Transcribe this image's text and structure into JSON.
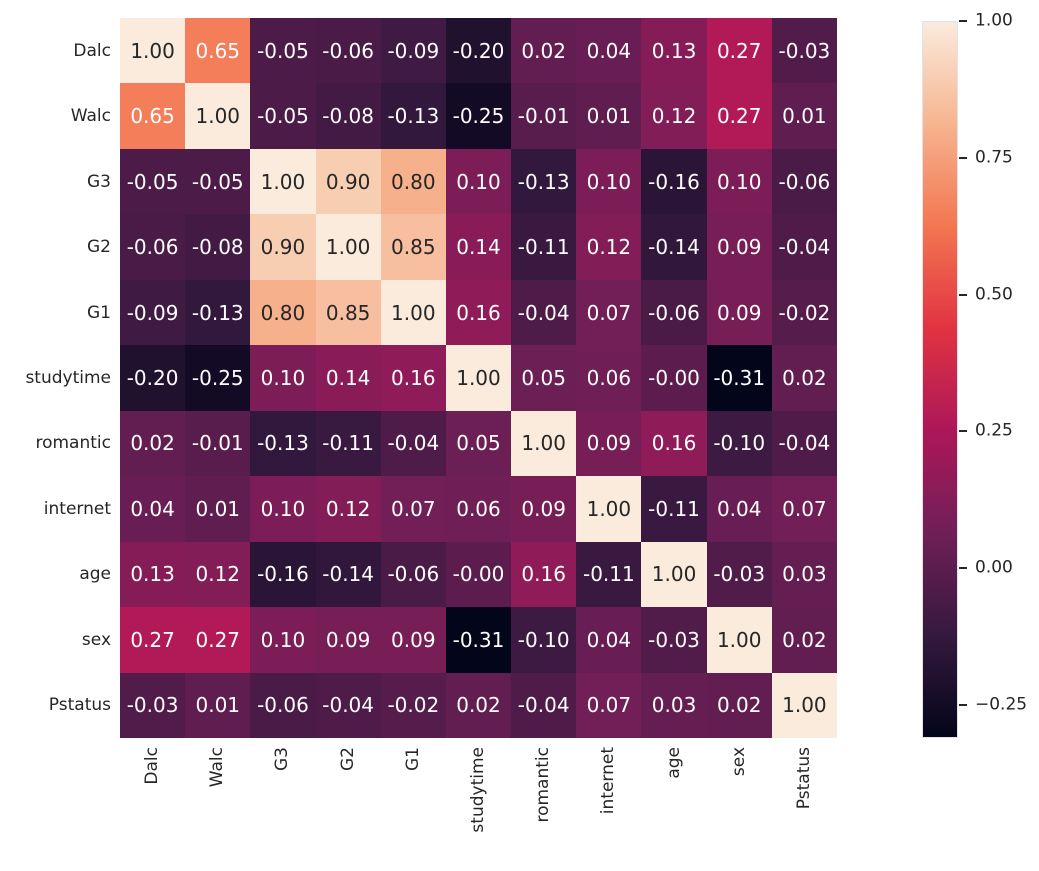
{
  "figure": {
    "background": "#ffffff",
    "text_color": "#262626"
  },
  "chart_data": {
    "type": "heatmap",
    "title": "",
    "xlabel": "",
    "ylabel": "",
    "categories": [
      "Dalc",
      "Walc",
      "G3",
      "G2",
      "G1",
      "studytime",
      "romantic",
      "internet",
      "age",
      "sex",
      "Pstatus"
    ],
    "values": [
      [
        1.0,
        0.65,
        -0.05,
        -0.06,
        -0.09,
        -0.2,
        0.02,
        0.04,
        0.13,
        0.27,
        -0.03
      ],
      [
        0.65,
        1.0,
        -0.05,
        -0.08,
        -0.13,
        -0.25,
        -0.01,
        0.01,
        0.12,
        0.27,
        0.01
      ],
      [
        -0.05,
        -0.05,
        1.0,
        0.9,
        0.8,
        0.1,
        -0.13,
        0.1,
        -0.16,
        0.1,
        -0.06
      ],
      [
        -0.06,
        -0.08,
        0.9,
        1.0,
        0.85,
        0.14,
        -0.11,
        0.12,
        -0.14,
        0.09,
        -0.04
      ],
      [
        -0.09,
        -0.13,
        0.8,
        0.85,
        1.0,
        0.16,
        -0.04,
        0.07,
        -0.06,
        0.09,
        -0.02
      ],
      [
        -0.2,
        -0.25,
        0.1,
        0.14,
        0.16,
        1.0,
        0.05,
        0.06,
        -0.0,
        -0.31,
        0.02
      ],
      [
        0.02,
        -0.01,
        -0.13,
        -0.11,
        -0.04,
        0.05,
        1.0,
        0.09,
        0.16,
        -0.1,
        -0.04
      ],
      [
        0.04,
        0.01,
        0.1,
        0.12,
        0.07,
        0.06,
        0.09,
        1.0,
        -0.11,
        0.04,
        0.07
      ],
      [
        0.13,
        0.12,
        -0.16,
        -0.14,
        -0.06,
        -0.0,
        0.16,
        -0.11,
        1.0,
        -0.03,
        0.03
      ],
      [
        0.27,
        0.27,
        0.1,
        0.09,
        0.09,
        -0.31,
        -0.1,
        0.04,
        -0.03,
        1.0,
        0.02
      ],
      [
        -0.03,
        0.01,
        -0.06,
        -0.04,
        -0.02,
        0.02,
        -0.04,
        0.07,
        0.03,
        0.02,
        1.0
      ]
    ],
    "cell_labels": [
      [
        "1.00",
        "0.65",
        "-0.05",
        "-0.06",
        "-0.09",
        "-0.20",
        "0.02",
        "0.04",
        "0.13",
        "0.27",
        "-0.03"
      ],
      [
        "0.65",
        "1.00",
        "-0.05",
        "-0.08",
        "-0.13",
        "-0.25",
        "-0.01",
        "0.01",
        "0.12",
        "0.27",
        "0.01"
      ],
      [
        "-0.05",
        "-0.05",
        "1.00",
        "0.90",
        "0.80",
        "0.10",
        "-0.13",
        "0.10",
        "-0.16",
        "0.10",
        "-0.06"
      ],
      [
        "-0.06",
        "-0.08",
        "0.90",
        "1.00",
        "0.85",
        "0.14",
        "-0.11",
        "0.12",
        "-0.14",
        "0.09",
        "-0.04"
      ],
      [
        "-0.09",
        "-0.13",
        "0.80",
        "0.85",
        "1.00",
        "0.16",
        "-0.04",
        "0.07",
        "-0.06",
        "0.09",
        "-0.02"
      ],
      [
        "-0.20",
        "-0.25",
        "0.10",
        "0.14",
        "0.16",
        "1.00",
        "0.05",
        "0.06",
        "-0.00",
        "-0.31",
        "0.02"
      ],
      [
        "0.02",
        "-0.01",
        "-0.13",
        "-0.11",
        "-0.04",
        "0.05",
        "1.00",
        "0.09",
        "0.16",
        "-0.10",
        "-0.04"
      ],
      [
        "0.04",
        "0.01",
        "0.10",
        "0.12",
        "0.07",
        "0.06",
        "0.09",
        "1.00",
        "-0.11",
        "0.04",
        "0.07"
      ],
      [
        "0.13",
        "0.12",
        "-0.16",
        "-0.14",
        "-0.06",
        "-0.00",
        "0.16",
        "-0.11",
        "1.00",
        "-0.03",
        "0.03"
      ],
      [
        "0.27",
        "0.27",
        "0.10",
        "0.09",
        "0.09",
        "-0.31",
        "-0.10",
        "0.04",
        "-0.03",
        "1.00",
        "0.02"
      ],
      [
        "-0.03",
        "0.01",
        "-0.06",
        "-0.04",
        "-0.02",
        "0.02",
        "-0.04",
        "0.07",
        "0.03",
        "0.02",
        "1.00"
      ]
    ],
    "vmin": -0.31,
    "vmax": 1.0,
    "grid": false,
    "colormap": {
      "name": "rocket",
      "stops": [
        {
          "t": 0.0,
          "color": "#03051A"
        },
        {
          "t": 0.143,
          "color": "#35193E"
        },
        {
          "t": 0.286,
          "color": "#701F57"
        },
        {
          "t": 0.429,
          "color": "#AD1759"
        },
        {
          "t": 0.571,
          "color": "#E13342"
        },
        {
          "t": 0.714,
          "color": "#F37651"
        },
        {
          "t": 0.857,
          "color": "#F6B48F"
        },
        {
          "t": 1.0,
          "color": "#FAEBDD"
        }
      ]
    },
    "annotation_colors": {
      "light_text": "#ffffff",
      "dark_text": "#262626",
      "luminance_threshold": 0.408
    },
    "colorbar": {
      "position": "right",
      "tick_labels": [
        "1.00",
        "0.75",
        "0.50",
        "0.25",
        "0.00",
        "−0.25"
      ],
      "tick_values": [
        1.0,
        0.75,
        0.5,
        0.25,
        0.0,
        -0.25
      ]
    }
  }
}
